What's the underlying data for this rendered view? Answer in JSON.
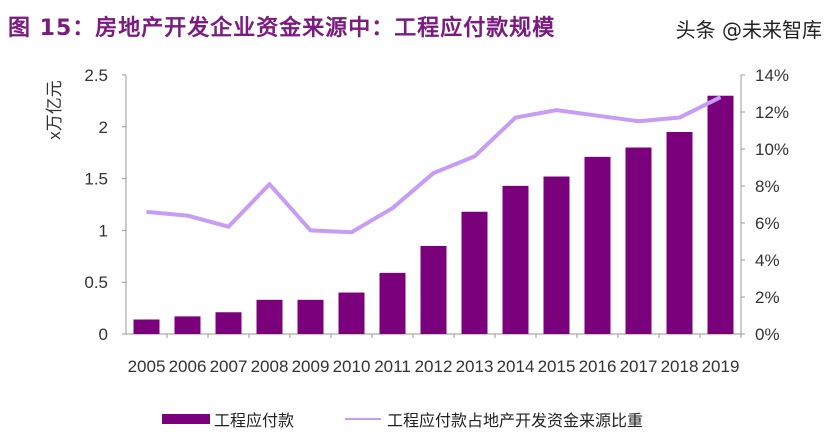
{
  "title": "图 15：房地产开发企业资金来源中：工程应付款规模",
  "watermark": "头条 @未来智库",
  "chart_data": {
    "type": "bar+line",
    "title": "图 15：房地产开发企业资金来源中：工程应付款规模",
    "ylabel": "x万亿元",
    "categories": [
      "2005",
      "2006",
      "2007",
      "2008",
      "2009",
      "2010",
      "2011",
      "2012",
      "2013",
      "2014",
      "2015",
      "2016",
      "2017",
      "2018",
      "2019"
    ],
    "series": [
      {
        "name": "工程应付款",
        "type": "bar",
        "axis": "left",
        "color": "#7b007b",
        "values": [
          0.14,
          0.17,
          0.21,
          0.33,
          0.33,
          0.4,
          0.59,
          0.85,
          1.18,
          1.43,
          1.52,
          1.71,
          1.8,
          1.95,
          2.3
        ]
      },
      {
        "name": "工程应付款占地产开发资金来源比重",
        "type": "line",
        "axis": "right",
        "color": "#c89cf5",
        "values": [
          6.6,
          6.4,
          5.8,
          8.1,
          5.6,
          5.5,
          6.8,
          8.7,
          9.6,
          11.7,
          12.1,
          11.8,
          11.5,
          11.7,
          12.8
        ]
      }
    ],
    "ylim": [
      0,
      2.5
    ],
    "yticks": [
      "0",
      "0.5",
      "1",
      "1.5",
      "2",
      "2.5"
    ],
    "y2lim": [
      0,
      14
    ],
    "y2ticks": [
      "0%",
      "2%",
      "4%",
      "6%",
      "8%",
      "10%",
      "12%",
      "14%"
    ],
    "grid": false,
    "legend_position": "bottom"
  }
}
